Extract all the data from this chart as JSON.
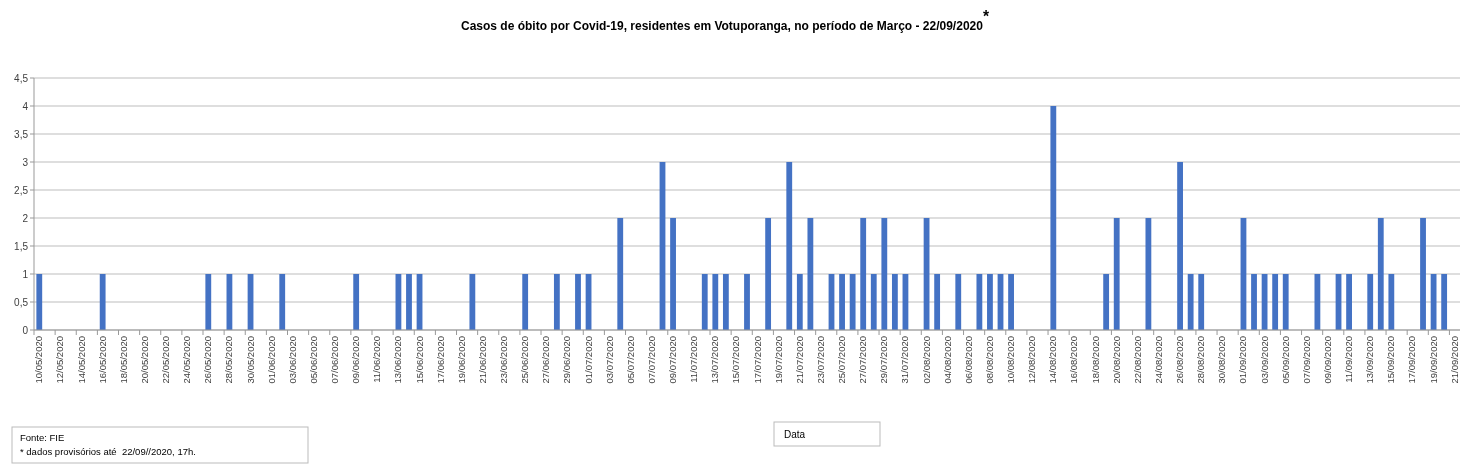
{
  "chart_data": {
    "type": "bar",
    "title": "Casos de óbito por Covid-19, residentes em Votuporanga, no período de Março - 22/09/2020$^{*}$",
    "xlabel": "Data",
    "categories": [
      "10/05/2020",
      null,
      "12/05/2020",
      null,
      "14/05/2020",
      null,
      "16/05/2020",
      null,
      "18/05/2020",
      null,
      "20/05/2020",
      null,
      "22/05/2020",
      null,
      "24/05/2020",
      null,
      "26/05/2020",
      null,
      "28/05/2020",
      null,
      "30/05/2020",
      null,
      "01/06/2020",
      null,
      "03/06/2020",
      null,
      "05/06/2020",
      null,
      "07/06/2020",
      null,
      "09/06/2020",
      null,
      "11/06/2020",
      null,
      "13/06/2020",
      null,
      "15/06/2020",
      null,
      "17/06/2020",
      null,
      "19/06/2020",
      null,
      "21/06/2020",
      null,
      "23/06/2020",
      null,
      "25/06/2020",
      null,
      "27/06/2020",
      null,
      "29/06/2020",
      null,
      "01/07/2020",
      null,
      "03/07/2020",
      null,
      "05/07/2020",
      null,
      "07/07/2020",
      null,
      "09/07/2020",
      null,
      "11/07/2020",
      null,
      "13/07/2020",
      null,
      "15/07/2020",
      null,
      "17/07/2020",
      null,
      "19/07/2020",
      null,
      "21/07/2020",
      null,
      "23/07/2020",
      null,
      "25/07/2020",
      null,
      "27/07/2020",
      null,
      "29/07/2020",
      null,
      "31/07/2020",
      null,
      "02/08/2020",
      null,
      "04/08/2020",
      null,
      "06/08/2020",
      null,
      "08/08/2020",
      null,
      "10/08/2020",
      null,
      "12/08/2020",
      null,
      "14/08/2020",
      null,
      "16/08/2020",
      null,
      "18/08/2020",
      null,
      "20/08/2020",
      null,
      "22/08/2020",
      null,
      "24/08/2020",
      null,
      "26/08/2020",
      null,
      "28/08/2020",
      null,
      "30/08/2020",
      null,
      "01/09/2020",
      null,
      "03/09/2020",
      null,
      "05/09/2020",
      null,
      "07/09/2020",
      null,
      "09/09/2020",
      null,
      "11/09/2020",
      null,
      "13/09/2020",
      null,
      "15/09/2020",
      null,
      "17/09/2020",
      null,
      "19/09/2020",
      null,
      "21/09/2020"
    ],
    "values": [
      1,
      0,
      0,
      0,
      0,
      0,
      1,
      0,
      0,
      0,
      0,
      0,
      0,
      0,
      0,
      0,
      1,
      0,
      1,
      0,
      1,
      0,
      0,
      1,
      0,
      0,
      0,
      0,
      0,
      0,
      1,
      0,
      0,
      0,
      1,
      1,
      1,
      0,
      0,
      0,
      0,
      1,
      0,
      0,
      0,
      0,
      1,
      0,
      0,
      1,
      0,
      1,
      1,
      0,
      0,
      2,
      0,
      0,
      0,
      3,
      2,
      0,
      0,
      1,
      1,
      1,
      0,
      1,
      0,
      2,
      0,
      3,
      1,
      2,
      0,
      1,
      1,
      1,
      2,
      1,
      2,
      1,
      1,
      0,
      2,
      1,
      0,
      1,
      0,
      1,
      1,
      1,
      1,
      0,
      0,
      0,
      4,
      0,
      0,
      0,
      0,
      1,
      2,
      0,
      0,
      2,
      0,
      0,
      3,
      1,
      1,
      0,
      0,
      0,
      2,
      1,
      1,
      1,
      1,
      0,
      0,
      1,
      0,
      1,
      1,
      0,
      1,
      2,
      1,
      0,
      0,
      2,
      1,
      1,
      0
    ],
    "color": "#4472c4",
    "ylim": [
      0,
      4.5
    ],
    "yticks": [
      0,
      {
        "value": 0.5,
        "label": "0,5"
      },
      1,
      {
        "value": 1.5,
        "label": "1,5"
      },
      2,
      {
        "value": 2.5,
        "label": "2,5"
      },
      3,
      {
        "value": 3.5,
        "label": "3,5"
      },
      4,
      {
        "value": 4.5,
        "label": "4,5"
      }
    ],
    "grid": "y",
    "annotations": [
      "Fonte: FIE",
      "* dados provisórios até  22/09//2020, 17h."
    ]
  }
}
